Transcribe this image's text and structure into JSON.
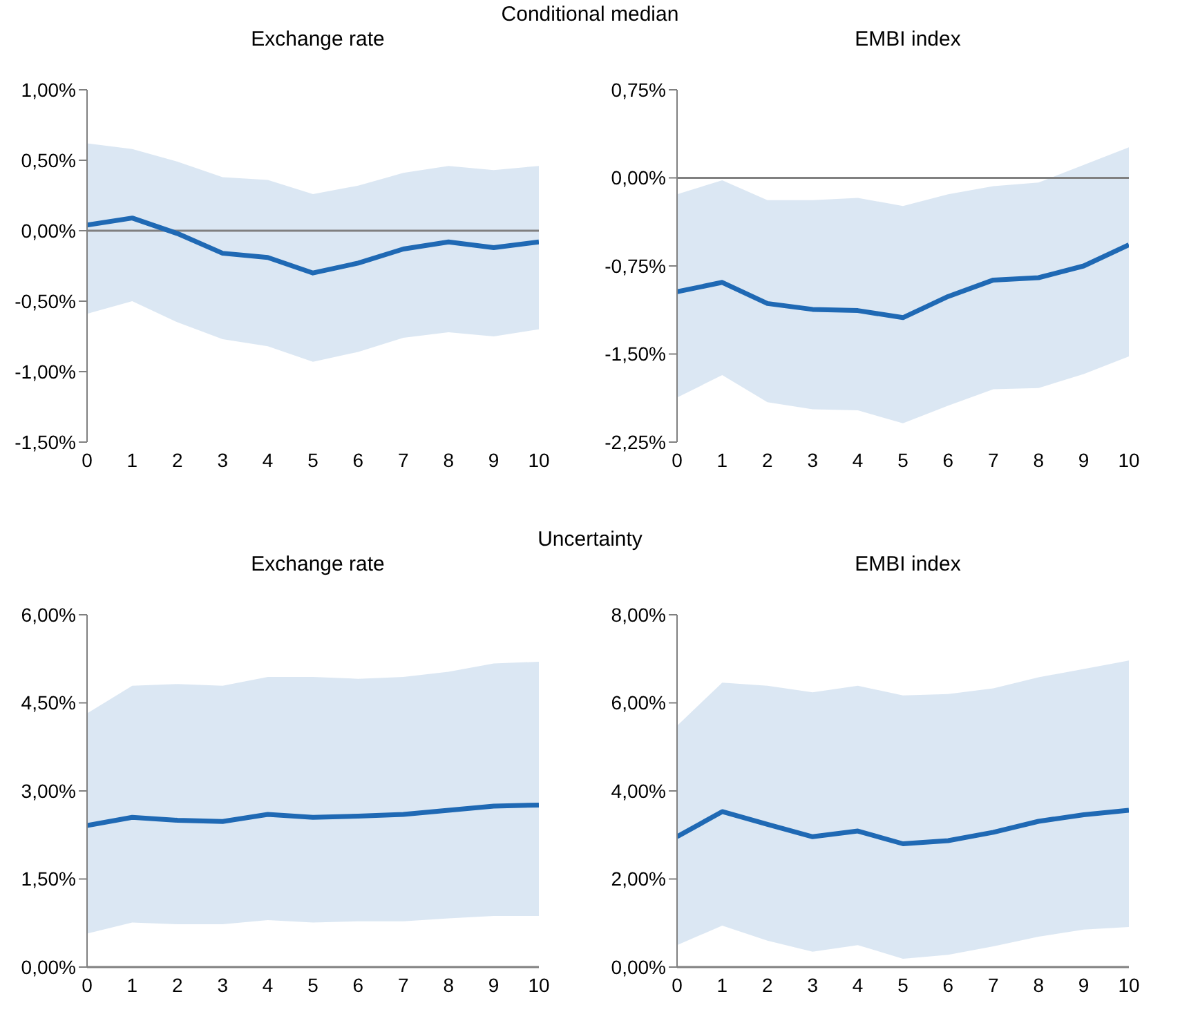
{
  "chart_data": [
    {
      "type": "line",
      "title": "Exchange rate",
      "annotations": [
        "Conditional median"
      ],
      "x": [
        0,
        1,
        2,
        3,
        4,
        5,
        6,
        7,
        8,
        9,
        10
      ],
      "xlim": [
        0,
        10
      ],
      "xticks": [
        0,
        1,
        2,
        3,
        4,
        5,
        6,
        7,
        8,
        9,
        10
      ],
      "ylim": [
        -1.5,
        1
      ],
      "yticks": [
        {
          "value": -1.5,
          "label": "-1,50%"
        },
        {
          "value": -1,
          "label": "-1,00%"
        },
        {
          "value": -0.5,
          "label": "-0,50%"
        },
        {
          "value": 0,
          "label": "0,00%"
        },
        {
          "value": 0.5,
          "label": "0,50%"
        },
        {
          "value": 1,
          "label": "1,00%"
        }
      ],
      "grid": false,
      "legend": false,
      "marker": "none",
      "ref_lines": [
        {
          "axis": "y",
          "value": 0,
          "color": "#808080"
        }
      ],
      "series": [
        {
          "color": "#1f69b4",
          "values": [
            0.04,
            0.09,
            -0.02,
            -0.16,
            -0.19,
            -0.3,
            -0.23,
            -0.13,
            -0.08,
            -0.12,
            -0.08
          ],
          "lower": [
            -0.59,
            -0.5,
            -0.65,
            -0.77,
            -0.82,
            -0.93,
            -0.86,
            -0.76,
            -0.72,
            -0.75,
            -0.7
          ],
          "upper": [
            0.62,
            0.58,
            0.49,
            0.38,
            0.36,
            0.26,
            0.32,
            0.41,
            0.46,
            0.43,
            0.46
          ]
        }
      ]
    },
    {
      "type": "line",
      "title": "EMBI index",
      "x": [
        0,
        1,
        2,
        3,
        4,
        5,
        6,
        7,
        8,
        9,
        10
      ],
      "xlim": [
        0,
        10
      ],
      "xticks": [
        0,
        1,
        2,
        3,
        4,
        5,
        6,
        7,
        8,
        9,
        10
      ],
      "ylim": [
        -2.25,
        0.75
      ],
      "yticks": [
        {
          "value": -2.25,
          "label": "-2,25%"
        },
        {
          "value": -1.5,
          "label": "-1,50%"
        },
        {
          "value": -0.75,
          "label": "-0,75%"
        },
        {
          "value": 0,
          "label": "0,00%"
        },
        {
          "value": 0.75,
          "label": "0,75%"
        }
      ],
      "grid": false,
      "legend": false,
      "marker": "none",
      "ref_lines": [
        {
          "axis": "y",
          "value": 0,
          "color": "#808080"
        }
      ],
      "series": [
        {
          "color": "#1f69b4",
          "values": [
            -0.97,
            -0.89,
            -1.07,
            -1.12,
            -1.13,
            -1.19,
            -1.01,
            -0.87,
            -0.85,
            -0.75,
            -0.57
          ],
          "lower": [
            -1.87,
            -1.68,
            -1.91,
            -1.97,
            -1.98,
            -2.09,
            -1.94,
            -1.8,
            -1.79,
            -1.67,
            -1.52
          ],
          "upper": [
            -0.14,
            -0.02,
            -0.19,
            -0.19,
            -0.17,
            -0.24,
            -0.14,
            -0.07,
            -0.04,
            0.11,
            0.26
          ]
        }
      ]
    },
    {
      "type": "line",
      "title": "Exchange rate",
      "annotations": [
        "Uncertainty"
      ],
      "x": [
        0,
        1,
        2,
        3,
        4,
        5,
        6,
        7,
        8,
        9,
        10
      ],
      "xlim": [
        0,
        10
      ],
      "xticks": [
        0,
        1,
        2,
        3,
        4,
        5,
        6,
        7,
        8,
        9,
        10
      ],
      "ylim": [
        0,
        6
      ],
      "yticks": [
        {
          "value": 0,
          "label": "0,00%"
        },
        {
          "value": 1.5,
          "label": "1,50%"
        },
        {
          "value": 3,
          "label": "3,00%"
        },
        {
          "value": 4.5,
          "label": "4,50%"
        },
        {
          "value": 6,
          "label": "6,00%"
        }
      ],
      "grid": false,
      "legend": false,
      "marker": "none",
      "series": [
        {
          "color": "#1f69b4",
          "values": [
            2.41,
            2.55,
            2.5,
            2.48,
            2.6,
            2.55,
            2.57,
            2.6,
            2.67,
            2.74,
            2.76
          ],
          "lower": [
            0.57,
            0.76,
            0.73,
            0.73,
            0.8,
            0.76,
            0.78,
            0.78,
            0.83,
            0.87,
            0.87
          ],
          "upper": [
            4.32,
            4.79,
            4.82,
            4.79,
            4.94,
            4.94,
            4.91,
            4.94,
            5.03,
            5.17,
            5.2
          ]
        }
      ]
    },
    {
      "type": "line",
      "title": "EMBI index",
      "x": [
        0,
        1,
        2,
        3,
        4,
        5,
        6,
        7,
        8,
        9,
        10
      ],
      "xlim": [
        0,
        10
      ],
      "xticks": [
        0,
        1,
        2,
        3,
        4,
        5,
        6,
        7,
        8,
        9,
        10
      ],
      "ylim": [
        0,
        8
      ],
      "yticks": [
        {
          "value": 0,
          "label": "0,00%"
        },
        {
          "value": 2,
          "label": "2,00%"
        },
        {
          "value": 4,
          "label": "4,00%"
        },
        {
          "value": 6,
          "label": "6,00%"
        },
        {
          "value": 8,
          "label": "8,00%"
        }
      ],
      "grid": false,
      "legend": false,
      "marker": "none",
      "series": [
        {
          "color": "#1f69b4",
          "values": [
            2.96,
            3.53,
            3.24,
            2.96,
            3.09,
            2.8,
            2.87,
            3.06,
            3.31,
            3.46,
            3.56
          ],
          "lower": [
            0.5,
            0.94,
            0.6,
            0.35,
            0.5,
            0.19,
            0.28,
            0.47,
            0.69,
            0.85,
            0.91
          ],
          "upper": [
            5.48,
            6.46,
            6.39,
            6.24,
            6.39,
            6.17,
            6.2,
            6.33,
            6.58,
            6.77,
            6.96
          ]
        }
      ]
    }
  ]
}
